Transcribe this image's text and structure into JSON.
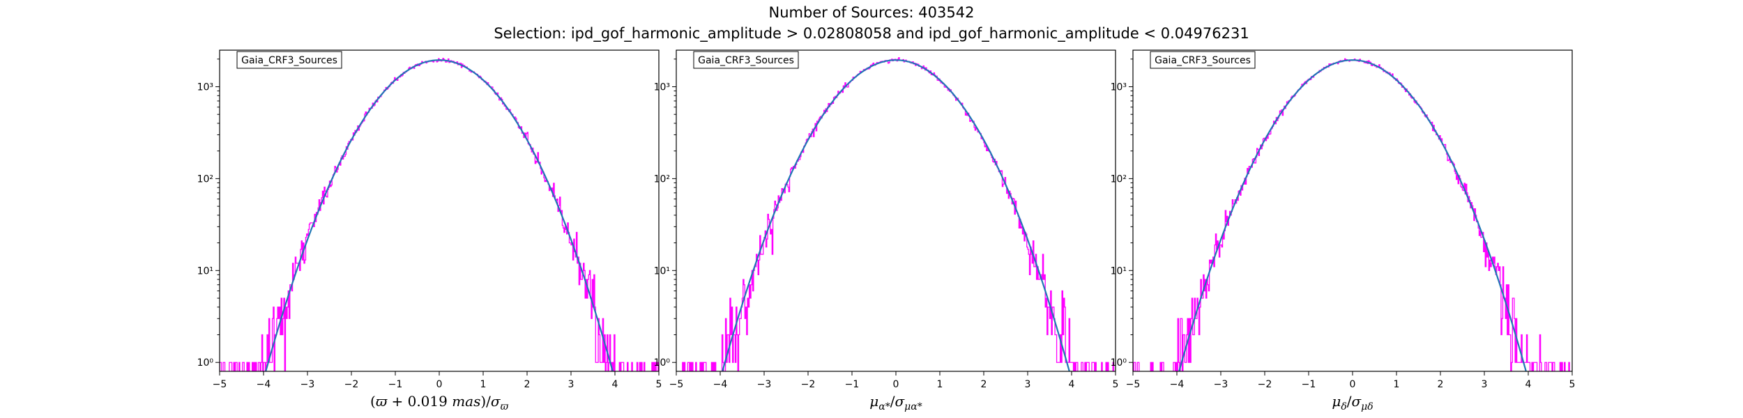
{
  "figure": {
    "title_line1": "Number of Sources: 403542",
    "title_line2": "Selection: ipd_gof_harmonic_amplitude > 0.02808058 and ipd_gof_harmonic_amplitude < 0.04976231"
  },
  "colors": {
    "histogram": "#ff00ff",
    "model_curve": "#1f77b4"
  },
  "chart_data": [
    {
      "type": "line",
      "legend": "Gaia_CRF3_Sources",
      "xlabel": "(ϖ + 0.019 mas)/σϖ",
      "ylabel": "",
      "xlim": [
        -5,
        5
      ],
      "ylim": [
        0.8,
        2500
      ],
      "yscale": "log",
      "xticks": [
        "−5",
        "−4",
        "−3",
        "−2",
        "−1",
        "0",
        "1",
        "2",
        "3",
        "4",
        "5"
      ],
      "yticks": [
        "10⁰",
        "10¹",
        "10²",
        "10³"
      ],
      "series": [
        {
          "kind": "histogram",
          "x_range": [
            -5,
            5
          ],
          "bin_width": 0.02,
          "peak": 1950,
          "sigma": 1.0,
          "noise_seed": 11
        },
        {
          "kind": "gaussian",
          "x_range": [
            -4.3,
            4.3
          ],
          "peak": 1950,
          "mean": 0.0,
          "sigma": 1.0
        }
      ]
    },
    {
      "type": "line",
      "legend": "Gaia_CRF3_Sources",
      "xlabel": "μα*/σμα*",
      "ylabel": "",
      "xlim": [
        -5,
        5
      ],
      "ylim": [
        0.8,
        2500
      ],
      "yscale": "log",
      "xticks": [
        "−5",
        "−4",
        "−3",
        "−2",
        "−1",
        "0",
        "1",
        "2",
        "3",
        "4",
        "5"
      ],
      "yticks": [
        "10⁰",
        "10¹",
        "10²",
        "10³"
      ],
      "series": [
        {
          "kind": "histogram",
          "x_range": [
            -5,
            5
          ],
          "bin_width": 0.02,
          "peak": 1950,
          "sigma": 1.0,
          "noise_seed": 23
        },
        {
          "kind": "gaussian",
          "x_range": [
            -4.3,
            4.3
          ],
          "peak": 1950,
          "mean": 0.0,
          "sigma": 1.0
        }
      ]
    },
    {
      "type": "line",
      "legend": "Gaia_CRF3_Sources",
      "xlabel": "μδ/σμδ",
      "ylabel": "",
      "xlim": [
        -5,
        5
      ],
      "ylim": [
        0.8,
        2500
      ],
      "yscale": "log",
      "xticks": [
        "−5",
        "−4",
        "−3",
        "−2",
        "−1",
        "0",
        "1",
        "2",
        "3",
        "4",
        "5"
      ],
      "yticks": [
        "10⁰",
        "10¹",
        "10²",
        "10³"
      ],
      "series": [
        {
          "kind": "histogram",
          "x_range": [
            -5,
            5
          ],
          "bin_width": 0.02,
          "peak": 1950,
          "sigma": 1.0,
          "noise_seed": 37
        },
        {
          "kind": "gaussian",
          "x_range": [
            -4.3,
            4.3
          ],
          "peak": 1950,
          "mean": 0.0,
          "sigma": 1.0
        }
      ]
    }
  ]
}
